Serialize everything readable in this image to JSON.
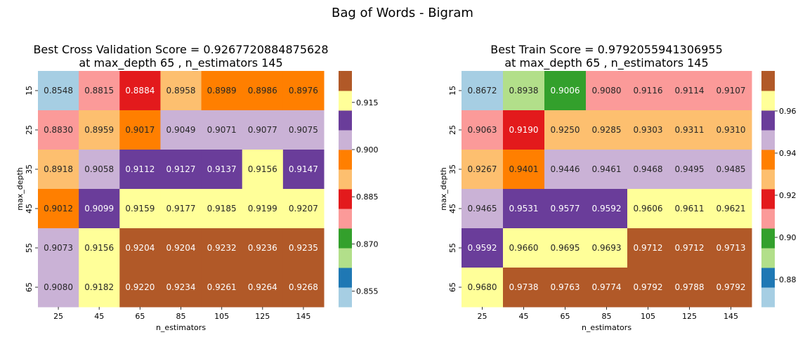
{
  "figure_title": "Bag of Words - Bigram",
  "colormap": [
    "#a6cee3",
    "#1f78b4",
    "#b2df8a",
    "#33a02c",
    "#fb9a99",
    "#e31a1c",
    "#fdbf6f",
    "#ff7f00",
    "#cab2d6",
    "#6a3d9a",
    "#ffff99",
    "#b15928"
  ],
  "chart_data": [
    {
      "type": "heatmap",
      "title": "Best Cross Validation Score = 0.9267720884875628",
      "subtitle": "at max_depth 65 , n_estimators 145",
      "xlabel": "n_estimators",
      "ylabel": "max_depth",
      "x": [
        "25",
        "45",
        "65",
        "85",
        "105",
        "125",
        "145"
      ],
      "y": [
        "15",
        "25",
        "35",
        "45",
        "55",
        "65"
      ],
      "values": [
        [
          0.8548,
          0.8815,
          0.8884,
          0.8958,
          0.8989,
          0.8986,
          0.8976
        ],
        [
          0.883,
          0.8959,
          0.9017,
          0.9049,
          0.9071,
          0.9077,
          0.9075
        ],
        [
          0.8918,
          0.9058,
          0.9112,
          0.9127,
          0.9137,
          0.9156,
          0.9147
        ],
        [
          0.9012,
          0.9099,
          0.9159,
          0.9177,
          0.9185,
          0.9199,
          0.9207
        ],
        [
          0.9073,
          0.9156,
          0.9204,
          0.9204,
          0.9232,
          0.9236,
          0.9235
        ],
        [
          0.908,
          0.9182,
          0.922,
          0.9234,
          0.9261,
          0.9264,
          0.9268
        ]
      ],
      "cell_color_index": [
        [
          0,
          4,
          5,
          6,
          7,
          7,
          7
        ],
        [
          4,
          6,
          7,
          8,
          8,
          8,
          8
        ],
        [
          6,
          8,
          9,
          9,
          9,
          10,
          9
        ],
        [
          7,
          9,
          10,
          10,
          10,
          10,
          10
        ],
        [
          8,
          10,
          11,
          11,
          11,
          11,
          11
        ],
        [
          8,
          10,
          11,
          11,
          11,
          11,
          11
        ]
      ],
      "colorbar_ticks": [
        "0.855",
        "0.870",
        "0.885",
        "0.900",
        "0.915"
      ],
      "colorbar_tick_values": [
        0.855,
        0.87,
        0.885,
        0.9,
        0.915
      ],
      "colorbar_range": [
        0.85,
        0.925
      ]
    },
    {
      "type": "heatmap",
      "title": "Best Train Score = 0.9792055941306955",
      "subtitle": "at max_depth 65 , n_estimators 145",
      "xlabel": "n_estimators",
      "ylabel": "max_depth",
      "x": [
        "25",
        "45",
        "65",
        "85",
        "105",
        "125",
        "145"
      ],
      "y": [
        "15",
        "25",
        "35",
        "45",
        "55",
        "65"
      ],
      "values": [
        [
          0.8672,
          0.8938,
          0.9006,
          0.908,
          0.9116,
          0.9114,
          0.9107
        ],
        [
          0.9063,
          0.919,
          0.925,
          0.9285,
          0.9303,
          0.9311,
          0.931
        ],
        [
          0.9267,
          0.9401,
          0.9446,
          0.9461,
          0.9468,
          0.9495,
          0.9485
        ],
        [
          0.9465,
          0.9531,
          0.9577,
          0.9592,
          0.9606,
          0.9611,
          0.9621
        ],
        [
          0.9592,
          0.966,
          0.9695,
          0.9693,
          0.9712,
          0.9712,
          0.9713
        ],
        [
          0.968,
          0.9738,
          0.9763,
          0.9774,
          0.9792,
          0.9788,
          0.9792
        ]
      ],
      "cell_color_index": [
        [
          0,
          2,
          3,
          4,
          4,
          4,
          4
        ],
        [
          4,
          5,
          6,
          6,
          6,
          6,
          6
        ],
        [
          6,
          7,
          8,
          8,
          8,
          8,
          8
        ],
        [
          8,
          9,
          9,
          9,
          10,
          10,
          10
        ],
        [
          9,
          10,
          10,
          10,
          11,
          11,
          11
        ],
        [
          10,
          11,
          11,
          11,
          11,
          11,
          11
        ]
      ],
      "colorbar_ticks": [
        "0.88",
        "0.90",
        "0.92",
        "0.94",
        "0.96"
      ],
      "colorbar_tick_values": [
        0.88,
        0.9,
        0.92,
        0.94,
        0.96
      ],
      "colorbar_range": [
        0.867,
        0.979
      ]
    }
  ]
}
